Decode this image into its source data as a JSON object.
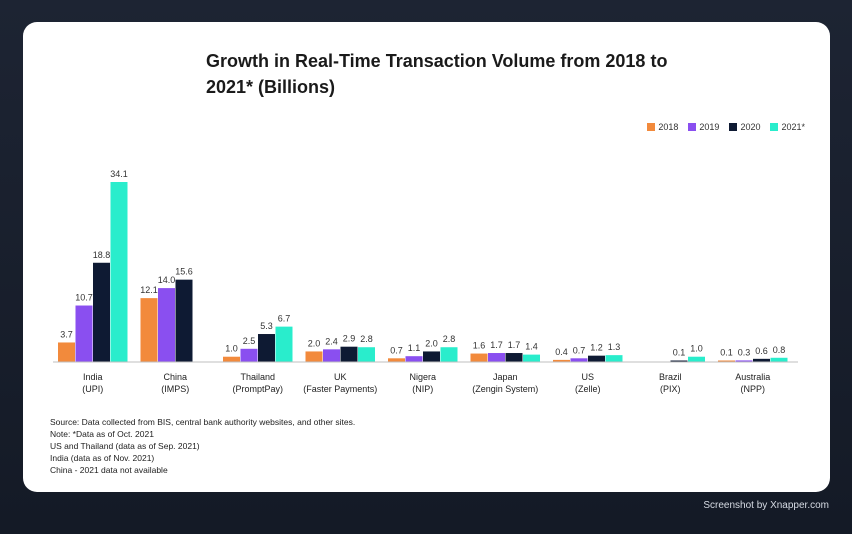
{
  "title": "Growth in Real-Time Transaction Volume from 2018 to 2021* (Billions)",
  "chart_data": {
    "type": "bar",
    "title": "Growth in Real-Time Transaction Volume from 2018 to 2021* (Billions)",
    "xlabel": "",
    "ylabel": "",
    "ylim": [
      0,
      34.1
    ],
    "grid": false,
    "legend_position": "top-right",
    "categories": [
      "India",
      "China",
      "Thailand",
      "UK",
      "Nigera",
      "Japan",
      "US",
      "Brazil",
      "Australia"
    ],
    "subcategories": [
      "(UPI)",
      "(IMPS)",
      "(PromptPay)",
      "(Faster Payments)",
      "(NIP)",
      "(Zengin System)",
      "(Zelle)",
      "(PIX)",
      "(NPP)"
    ],
    "series": [
      {
        "name": "2018",
        "color": "#f28a3c",
        "values": [
          3.7,
          12.1,
          1.0,
          2.0,
          0.7,
          1.6,
          0.4,
          null,
          0.1
        ]
      },
      {
        "name": "2019",
        "color": "#8a4ff0",
        "values": [
          10.7,
          14.0,
          2.5,
          2.4,
          1.1,
          1.7,
          0.7,
          null,
          0.3
        ]
      },
      {
        "name": "2020",
        "color": "#0e1a33",
        "values": [
          18.8,
          15.6,
          5.3,
          2.9,
          2.0,
          1.7,
          1.2,
          0.1,
          0.6
        ]
      },
      {
        "name": "2021*",
        "color": "#29edcc",
        "values": [
          34.1,
          null,
          6.7,
          2.8,
          2.8,
          1.4,
          1.3,
          1.0,
          0.8
        ]
      }
    ]
  },
  "notes": [
    "Source: Data collected from BIS, central bank authority websites, and other sites.",
    "Note: *Data as of Oct. 2021",
    "US and Thailand (data as of Sep. 2021)",
    "India (data as of Nov. 2021)",
    "China - 2021 data not available"
  ],
  "credit": "Screenshot by Xnapper.com"
}
